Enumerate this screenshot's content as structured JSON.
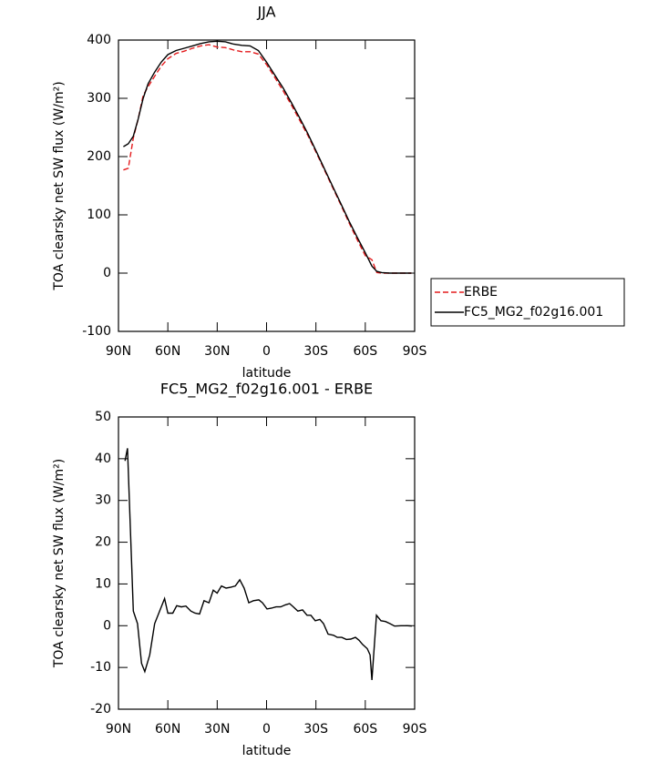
{
  "chart_data": [
    {
      "type": "line",
      "title": "JJA",
      "xlabel": "latitude",
      "ylabel": "TOA clearsky net SW flux (W/m²)",
      "x": [
        87,
        84,
        81,
        78,
        75,
        72,
        68,
        64,
        60,
        55,
        50,
        45,
        40,
        35,
        30,
        25,
        20,
        15,
        10,
        5,
        0,
        -5,
        -10,
        -15,
        -20,
        -25,
        -30,
        -35,
        -40,
        -45,
        -50,
        -55,
        -60,
        -64,
        -67,
        -70,
        -75,
        -80,
        -85,
        -88
      ],
      "series": [
        {
          "name": "ERBE",
          "color": "#e41a1c",
          "linestyle": "dashed",
          "values": [
            177,
            180,
            232,
            265,
            305,
            320,
            338,
            355,
            368,
            377,
            381,
            386,
            390,
            392,
            388,
            387,
            383,
            380,
            380,
            376,
            358,
            336,
            313,
            289,
            263,
            237,
            208,
            178,
            148,
            118,
            87,
            58,
            30,
            23,
            1,
            0,
            0,
            0,
            0,
            0
          ]
        },
        {
          "name": "FC5_MG2_f02g16.001",
          "color": "#000000",
          "linestyle": "solid",
          "values": [
            217,
            222,
            235,
            265,
            300,
            325,
            345,
            362,
            375,
            382,
            386,
            390,
            394,
            397,
            398,
            397,
            393,
            391,
            390,
            382,
            362,
            340,
            318,
            293,
            267,
            240,
            210,
            180,
            150,
            120,
            90,
            62,
            35,
            12,
            3,
            1,
            0,
            0,
            0,
            0
          ]
        }
      ],
      "xlim": [
        90,
        -90
      ],
      "xticks": [
        {
          "value": 90,
          "label": "90N"
        },
        {
          "value": 60,
          "label": "60N"
        },
        {
          "value": 30,
          "label": "30N"
        },
        0,
        {
          "value": -30,
          "label": "30S"
        },
        {
          "value": -60,
          "label": "60S"
        },
        {
          "value": -90,
          "label": "90S"
        }
      ],
      "ylim": [
        -100,
        400
      ],
      "yticks": [
        -100,
        0,
        100,
        200,
        300,
        400
      ],
      "legend": "right"
    },
    {
      "type": "line",
      "title": "FC5_MG2_f02g16.001 - ERBE",
      "xlabel": "latitude",
      "ylabel": "TOA clearsky net SW flux (W/m²)",
      "x": [
        86,
        84.5,
        81,
        78.4,
        76,
        74,
        71,
        68,
        62,
        60,
        57,
        54.6,
        51.8,
        49,
        46,
        43.5,
        40.7,
        38,
        35,
        32.4,
        30,
        27.4,
        24.6,
        21.9,
        19,
        16.3,
        13.6,
        10.8,
        8,
        4.7,
        2.5,
        -0.3,
        -3,
        -5.8,
        -8.6,
        -11.4,
        -14,
        -16.3,
        -19,
        -21.9,
        -24.6,
        -26.9,
        -29.6,
        -32.4,
        -34.6,
        -37.4,
        -40.7,
        -43,
        -45.7,
        -48.5,
        -51.2,
        -54,
        -56.2,
        -58.4,
        -61.2,
        -62.9,
        -64,
        -66.8,
        -69.5,
        -72.3,
        -75,
        -77.8,
        -81.7,
        -85.6,
        -88.3
      ],
      "series": [
        {
          "name": "FC5_MG2_f02g16.001 - ERBE",
          "color": "#000000",
          "linestyle": "solid",
          "values": [
            39.5,
            42.5,
            3.5,
            0.5,
            -9,
            -11,
            -7,
            0.5,
            6.5,
            3,
            3,
            4.8,
            4.5,
            4.7,
            3.5,
            3,
            2.8,
            6,
            5.5,
            8.5,
            7.8,
            9.5,
            9,
            9.2,
            9.5,
            11,
            9,
            5.5,
            6,
            6.2,
            5.5,
            4,
            4.2,
            4.5,
            4.5,
            5,
            5.3,
            4.5,
            3.5,
            3.8,
            2.5,
            2.5,
            1.2,
            1.5,
            0.5,
            -2,
            -2.3,
            -2.8,
            -2.8,
            -3.3,
            -3.2,
            -2.8,
            -3.5,
            -4.5,
            -5.5,
            -7,
            -13,
            2.5,
            1.2,
            1,
            0.5,
            -0.1,
            0,
            0,
            -0.1
          ]
        }
      ],
      "xlim": [
        90,
        -90
      ],
      "xticks": [
        {
          "value": 90,
          "label": "90N"
        },
        {
          "value": 60,
          "label": "60N"
        },
        {
          "value": 30,
          "label": "30N"
        },
        0,
        {
          "value": -30,
          "label": "30S"
        },
        {
          "value": -60,
          "label": "60S"
        },
        {
          "value": -90,
          "label": "90S"
        }
      ],
      "ylim": [
        -20,
        50
      ],
      "yticks": [
        -20,
        -10,
        0,
        10,
        20,
        30,
        40,
        50
      ]
    }
  ]
}
